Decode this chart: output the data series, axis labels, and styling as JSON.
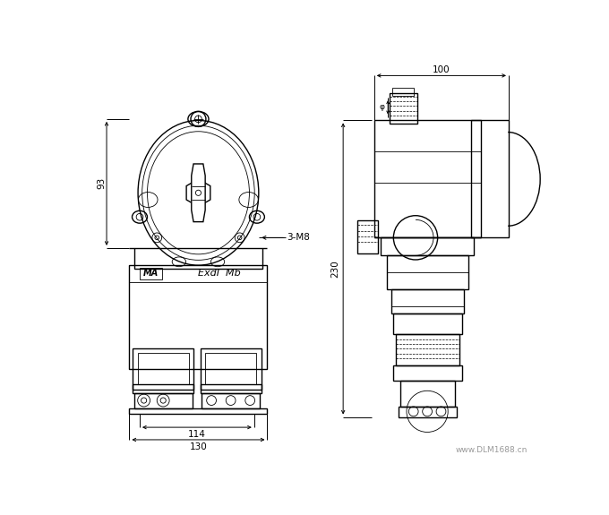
{
  "bg_color": "#ffffff",
  "line_color": "#000000",
  "watermark": "www.DLM1688.cn",
  "dim_93": "93",
  "dim_114": "114",
  "dim_130": "130",
  "dim_100": "100",
  "dim_230": "230",
  "dim_3M8": "3-M8",
  "label_exd": "ExdI  Mb",
  "fig_width": 6.8,
  "fig_height": 5.75,
  "dpi": 100
}
